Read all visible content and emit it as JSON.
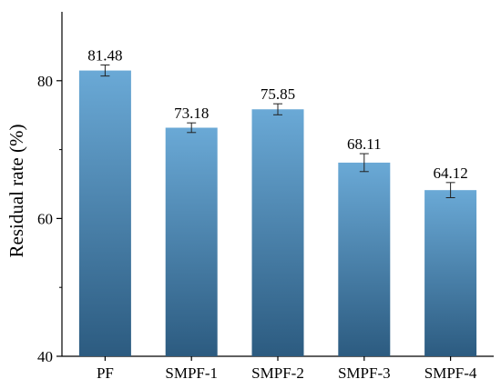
{
  "chart_data": {
    "type": "bar",
    "title": "",
    "xlabel": "",
    "ylabel": "Residual rate (%)",
    "ylim": [
      40,
      90
    ],
    "yticks": [
      40,
      60,
      80
    ],
    "minor_ticks": [
      50,
      70
    ],
    "grid": false,
    "legend": "none",
    "categories": [
      "PF",
      "SMPF-1",
      "SMPF-2",
      "SMPF-3",
      "SMPF-4"
    ],
    "values": [
      81.48,
      73.18,
      75.85,
      68.11,
      64.12
    ],
    "value_labels": [
      "81.48",
      "73.18",
      "75.85",
      "68.11",
      "64.12"
    ],
    "errors": [
      0.8,
      0.7,
      0.8,
      1.3,
      1.1
    ],
    "colors": {
      "bar_top": "#6aa9d6",
      "bar_bottom": "#2c5b80"
    }
  }
}
